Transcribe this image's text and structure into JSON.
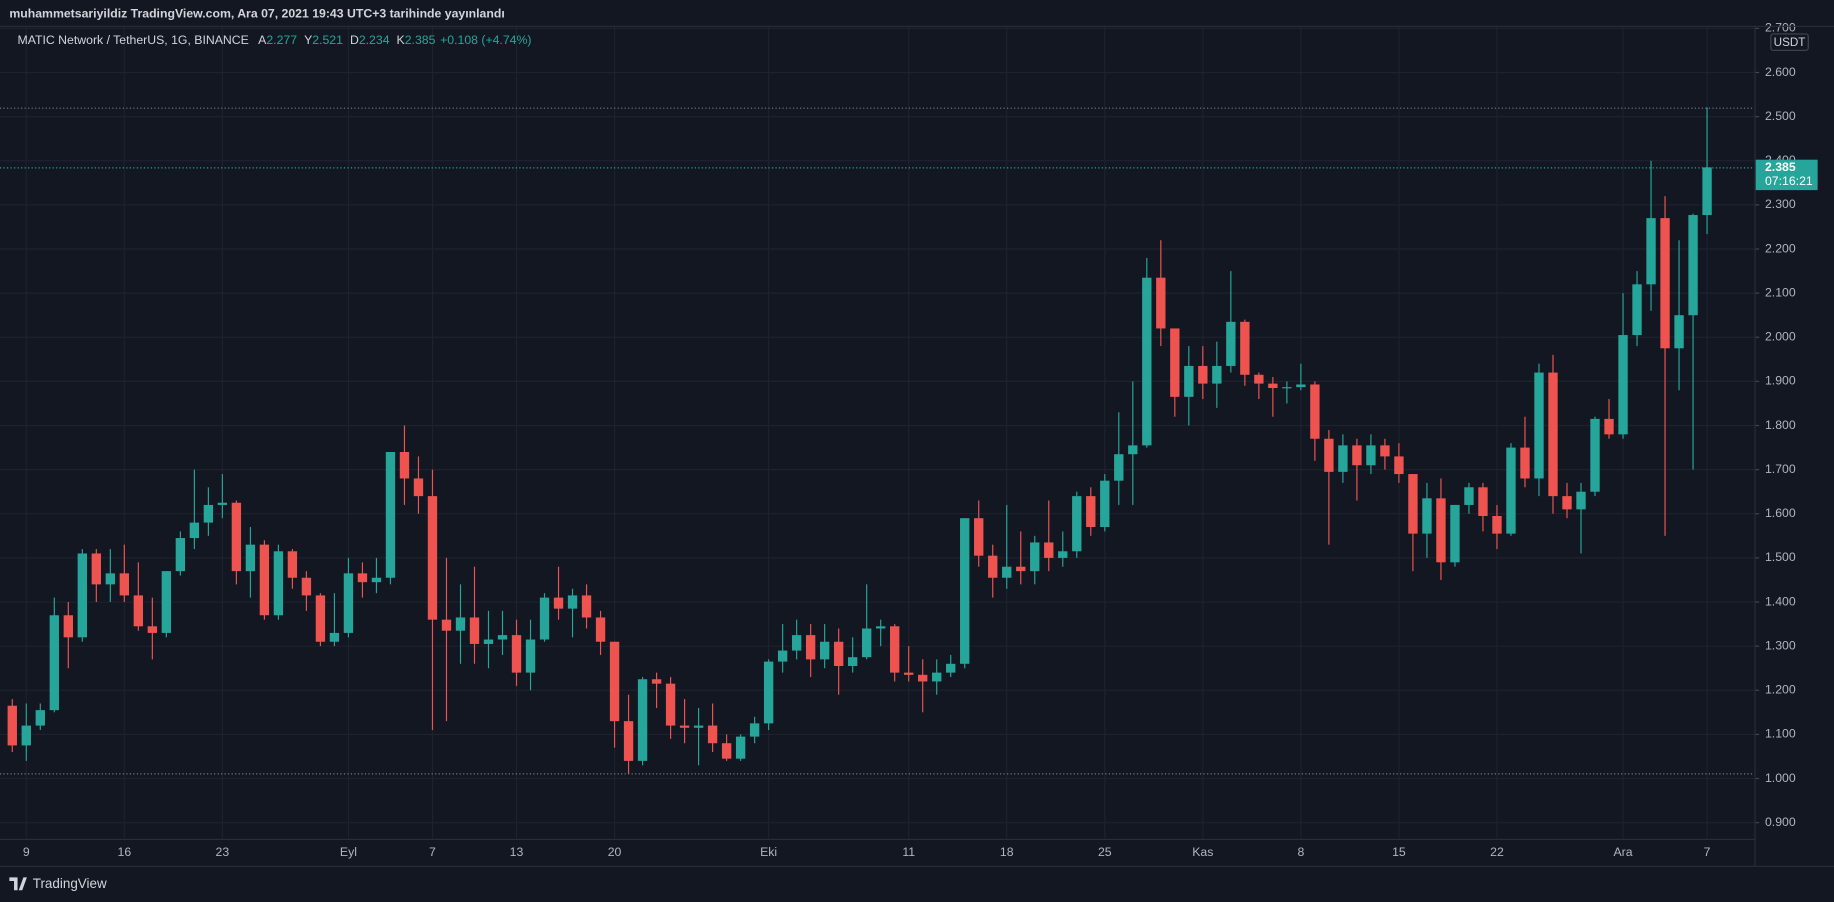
{
  "header": {
    "publisher": "muhammetsariyildiz TradingView.com, Ara 07, 2021 19:43 UTC+3 tarihinde yayınlandı"
  },
  "footer": {
    "brand": "TradingView"
  },
  "chart_data": {
    "type": "candlestick",
    "symbol": "MATIC Network / TetherUS, 1G, BINANCE",
    "ohlc_labels": [
      "A",
      "Y",
      "D",
      "K"
    ],
    "change": "+0.108 (+4.74%)",
    "price_unit": "USDT",
    "countdown": "07:16:21",
    "up_color": "#26a69a",
    "down_color": "#ef5350",
    "grid": true,
    "categories": [
      null,
      "9",
      null,
      null,
      null,
      null,
      null,
      null,
      "16",
      null,
      null,
      null,
      null,
      null,
      null,
      "23",
      null,
      null,
      null,
      null,
      null,
      null,
      null,
      null,
      "Eyl",
      null,
      null,
      null,
      null,
      null,
      "7",
      null,
      null,
      null,
      null,
      null,
      "13",
      null,
      null,
      null,
      null,
      null,
      null,
      "20",
      null,
      null,
      null,
      null,
      null,
      null,
      null,
      null,
      null,
      null,
      "Eki",
      null,
      null,
      null,
      null,
      null,
      null,
      null,
      null,
      null,
      "11",
      null,
      null,
      null,
      null,
      null,
      null,
      "18",
      null,
      null,
      null,
      null,
      null,
      null,
      "25",
      null,
      null,
      null,
      null,
      null,
      null,
      "Kas",
      null,
      null,
      null,
      null,
      null,
      null,
      "8",
      null,
      null,
      null,
      null,
      null,
      null,
      "15",
      null,
      null,
      null,
      null,
      null,
      null,
      "22",
      null,
      null,
      null,
      null,
      null,
      null,
      null,
      null,
      "Ara",
      null,
      null,
      null,
      null,
      null,
      "7"
    ],
    "open": [
      1.165,
      1.075,
      1.12,
      1.155,
      1.37,
      1.32,
      1.51,
      1.44,
      1.465,
      1.415,
      1.345,
      1.33,
      1.47,
      1.545,
      1.58,
      1.62,
      1.625,
      1.47,
      1.53,
      1.37,
      1.515,
      1.455,
      1.415,
      1.31,
      1.33,
      1.465,
      1.445,
      1.455,
      1.74,
      1.68,
      1.64,
      1.36,
      1.335,
      1.365,
      1.305,
      1.315,
      1.325,
      1.24,
      1.315,
      1.41,
      1.385,
      1.415,
      1.365,
      1.31,
      1.13,
      1.04,
      1.225,
      1.215,
      1.12,
      1.115,
      1.12,
      1.08,
      1.045,
      1.095,
      1.125,
      1.265,
      1.29,
      1.325,
      1.27,
      1.31,
      1.255,
      1.275,
      1.34,
      1.345,
      1.24,
      1.235,
      1.22,
      1.24,
      1.26,
      1.59,
      1.505,
      1.455,
      1.48,
      1.47,
      1.535,
      1.5,
      1.515,
      1.64,
      1.57,
      1.675,
      1.735,
      1.755,
      2.135,
      2.02,
      1.865,
      1.935,
      1.895,
      1.935,
      2.035,
      1.915,
      1.895,
      1.885,
      1.887,
      1.893,
      1.77,
      1.695,
      1.755,
      1.71,
      1.755,
      1.73,
      1.69,
      1.555,
      1.635,
      1.49,
      1.62,
      1.66,
      1.595,
      1.555,
      1.75,
      1.68,
      1.92,
      1.64,
      1.61,
      1.65,
      1.815,
      1.78,
      2.005,
      2.12,
      2.27,
      1.975,
      2.05,
      2.277
    ],
    "high": [
      1.18,
      1.17,
      1.17,
      1.41,
      1.4,
      1.52,
      1.52,
      1.52,
      1.53,
      1.49,
      1.41,
      1.47,
      1.56,
      1.7,
      1.66,
      1.69,
      1.63,
      1.57,
      1.54,
      1.53,
      1.52,
      1.47,
      1.42,
      1.42,
      1.5,
      1.49,
      1.5,
      1.74,
      1.8,
      1.73,
      1.7,
      1.5,
      1.44,
      1.48,
      1.38,
      1.38,
      1.36,
      1.36,
      1.42,
      1.48,
      1.43,
      1.44,
      1.38,
      1.31,
      1.19,
      1.23,
      1.24,
      1.23,
      1.18,
      1.16,
      1.17,
      1.1,
      1.1,
      1.14,
      1.27,
      1.35,
      1.36,
      1.35,
      1.35,
      1.34,
      1.32,
      1.44,
      1.36,
      1.35,
      1.3,
      1.27,
      1.27,
      1.28,
      1.59,
      1.63,
      1.53,
      1.62,
      1.56,
      1.55,
      1.63,
      1.56,
      1.65,
      1.66,
      1.69,
      1.83,
      1.9,
      2.18,
      2.22,
      2.02,
      1.98,
      1.98,
      1.99,
      2.15,
      2.04,
      1.92,
      1.91,
      1.9,
      1.94,
      1.9,
      1.79,
      1.78,
      1.77,
      1.78,
      1.77,
      1.76,
      1.69,
      1.67,
      1.68,
      1.62,
      1.67,
      1.67,
      1.62,
      1.76,
      1.82,
      1.94,
      1.96,
      1.67,
      1.67,
      1.82,
      1.86,
      2.1,
      2.15,
      2.4,
      2.32,
      2.22,
      2.28,
      2.521
    ],
    "low": [
      1.06,
      1.04,
      1.11,
      1.15,
      1.25,
      1.31,
      1.4,
      1.4,
      1.4,
      1.335,
      1.27,
      1.32,
      1.46,
      1.52,
      1.55,
      1.59,
      1.44,
      1.41,
      1.36,
      1.36,
      1.43,
      1.38,
      1.3,
      1.3,
      1.32,
      1.41,
      1.42,
      1.44,
      1.62,
      1.6,
      1.11,
      1.13,
      1.26,
      1.26,
      1.25,
      1.28,
      1.21,
      1.2,
      1.31,
      1.36,
      1.32,
      1.34,
      1.28,
      1.07,
      1.011,
      1.03,
      1.16,
      1.09,
      1.08,
      1.03,
      1.06,
      1.04,
      1.04,
      1.08,
      1.11,
      1.24,
      1.27,
      1.23,
      1.25,
      1.19,
      1.24,
      1.27,
      1.3,
      1.22,
      1.22,
      1.15,
      1.19,
      1.23,
      1.25,
      1.48,
      1.41,
      1.43,
      1.44,
      1.44,
      1.47,
      1.48,
      1.5,
      1.55,
      1.56,
      1.62,
      1.62,
      1.75,
      1.98,
      1.82,
      1.8,
      1.86,
      1.84,
      1.92,
      1.89,
      1.86,
      1.82,
      1.85,
      1.88,
      1.72,
      1.53,
      1.67,
      1.63,
      1.69,
      1.7,
      1.67,
      1.47,
      1.5,
      1.45,
      1.48,
      1.6,
      1.56,
      1.52,
      1.55,
      1.66,
      1.64,
      1.6,
      1.59,
      1.51,
      1.64,
      1.77,
      1.77,
      1.98,
      2.06,
      1.55,
      1.88,
      1.7,
      2.234
    ],
    "close": [
      1.075,
      1.12,
      1.155,
      1.37,
      1.32,
      1.51,
      1.44,
      1.465,
      1.415,
      1.345,
      1.33,
      1.47,
      1.545,
      1.58,
      1.62,
      1.625,
      1.47,
      1.53,
      1.37,
      1.515,
      1.455,
      1.415,
      1.31,
      1.33,
      1.465,
      1.445,
      1.455,
      1.74,
      1.68,
      1.64,
      1.36,
      1.335,
      1.365,
      1.305,
      1.315,
      1.325,
      1.24,
      1.315,
      1.41,
      1.385,
      1.415,
      1.365,
      1.31,
      1.13,
      1.04,
      1.225,
      1.215,
      1.12,
      1.115,
      1.12,
      1.08,
      1.045,
      1.095,
      1.125,
      1.265,
      1.29,
      1.325,
      1.27,
      1.31,
      1.255,
      1.275,
      1.34,
      1.345,
      1.24,
      1.235,
      1.22,
      1.24,
      1.26,
      1.59,
      1.505,
      1.455,
      1.48,
      1.47,
      1.535,
      1.5,
      1.515,
      1.64,
      1.57,
      1.675,
      1.735,
      1.755,
      2.135,
      2.02,
      1.865,
      1.935,
      1.895,
      1.935,
      2.035,
      1.915,
      1.895,
      1.885,
      1.887,
      1.893,
      1.77,
      1.695,
      1.755,
      1.71,
      1.755,
      1.73,
      1.69,
      1.555,
      1.635,
      1.49,
      1.62,
      1.66,
      1.595,
      1.555,
      1.75,
      1.68,
      1.92,
      1.64,
      1.61,
      1.65,
      1.815,
      1.78,
      2.005,
      2.12,
      2.27,
      1.975,
      2.05,
      2.277,
      2.385
    ],
    "ylim": [
      0.866,
      2.706
    ],
    "yticks": [
      {
        "value": 0.9,
        "label": "0.900"
      },
      {
        "value": 1.0,
        "label": "1.000"
      },
      {
        "value": 1.1,
        "label": "1.100"
      },
      {
        "value": 1.2,
        "label": "1.200"
      },
      {
        "value": 1.3,
        "label": "1.300"
      },
      {
        "value": 1.4,
        "label": "1.400"
      },
      {
        "value": 1.5,
        "label": "1.500"
      },
      {
        "value": 1.6,
        "label": "1.600"
      },
      {
        "value": 1.7,
        "label": "1.700"
      },
      {
        "value": 1.8,
        "label": "1.800"
      },
      {
        "value": 1.9,
        "label": "1.900"
      },
      {
        "value": 2.0,
        "label": "2.000"
      },
      {
        "value": 2.1,
        "label": "2.100"
      },
      {
        "value": 2.2,
        "label": "2.200"
      },
      {
        "value": 2.3,
        "label": "2.300"
      },
      {
        "value": 2.4,
        "label": "2.400"
      },
      {
        "value": 2.5,
        "label": "2.500"
      },
      {
        "value": 2.6,
        "label": "2.600"
      },
      {
        "value": 2.7,
        "label": "2.700"
      }
    ]
  }
}
